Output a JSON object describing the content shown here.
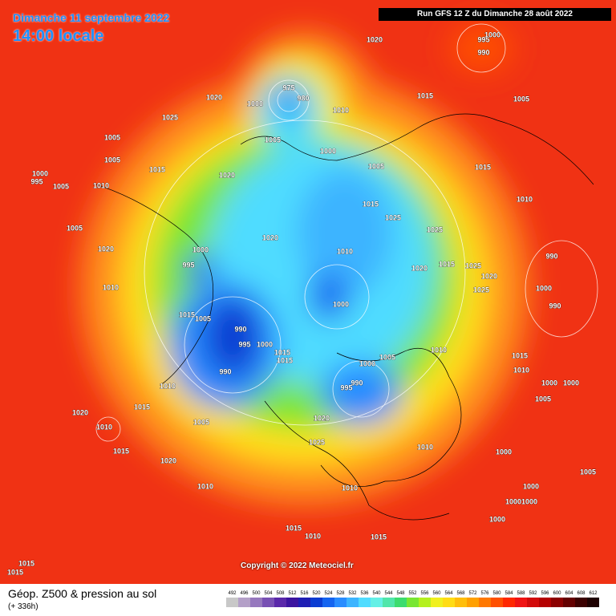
{
  "header": {
    "date": "Dimanche 11 septembre 2022",
    "time": "14:00 locale"
  },
  "run_info": "Run GFS 12 Z du Dimanche 28 août 2022",
  "copyright": "Copyright © 2022 Meteociel.fr",
  "legend": {
    "title": "Géop. Z500 & pression au sol",
    "subtitle": "(+ 336h)",
    "values": [
      492,
      496,
      500,
      504,
      508,
      512,
      516,
      520,
      524,
      528,
      532,
      536,
      540,
      544,
      548,
      552,
      556,
      560,
      564,
      568,
      572,
      576,
      580,
      584,
      588,
      592,
      596,
      600,
      604,
      608,
      612
    ],
    "colors": [
      "#c8c8c8",
      "#b4a0c8",
      "#9678be",
      "#7850b4",
      "#5a28aa",
      "#3c14a0",
      "#1e1eb4",
      "#0a3cd2",
      "#1464f0",
      "#288cff",
      "#3cb4ff",
      "#50dcff",
      "#64f0e6",
      "#50e6aa",
      "#3cdc6e",
      "#78e632",
      "#b4f01e",
      "#f0f01e",
      "#ffdc14",
      "#ffbe0a",
      "#ffa000",
      "#ff7800",
      "#ff5000",
      "#ff2800",
      "#f01414",
      "#d20a0a",
      "#b40000",
      "#8c0000",
      "#640000",
      "#3c0000",
      "#1e0000"
    ]
  },
  "isobar_labels": [
    1020,
    995,
    1000,
    990,
    1020,
    1025,
    975,
    980,
    1000,
    1010,
    1015,
    1005,
    1005,
    1005,
    1005,
    1000,
    1005,
    1015,
    1015,
    1020,
    1000,
    995,
    1005,
    1010,
    1010,
    1015,
    1025,
    1025,
    1005,
    1020,
    1010,
    1020,
    1000,
    995,
    1020,
    1015,
    1025,
    1020,
    990,
    1010,
    1000,
    1025,
    990,
    1000,
    1015,
    1005,
    990,
    995,
    1000,
    1015,
    1015,
    990,
    1010,
    1005,
    1000,
    990,
    995,
    1015,
    1010,
    1000,
    1000,
    1010,
    1015,
    1005,
    1020,
    1005,
    1020,
    1010,
    1015,
    1025,
    1010,
    1000,
    1020,
    1005,
    1010,
    1000,
    1010,
    1000,
    1000,
    1015,
    1010,
    1015,
    1000,
    1015,
    1015
  ]
}
